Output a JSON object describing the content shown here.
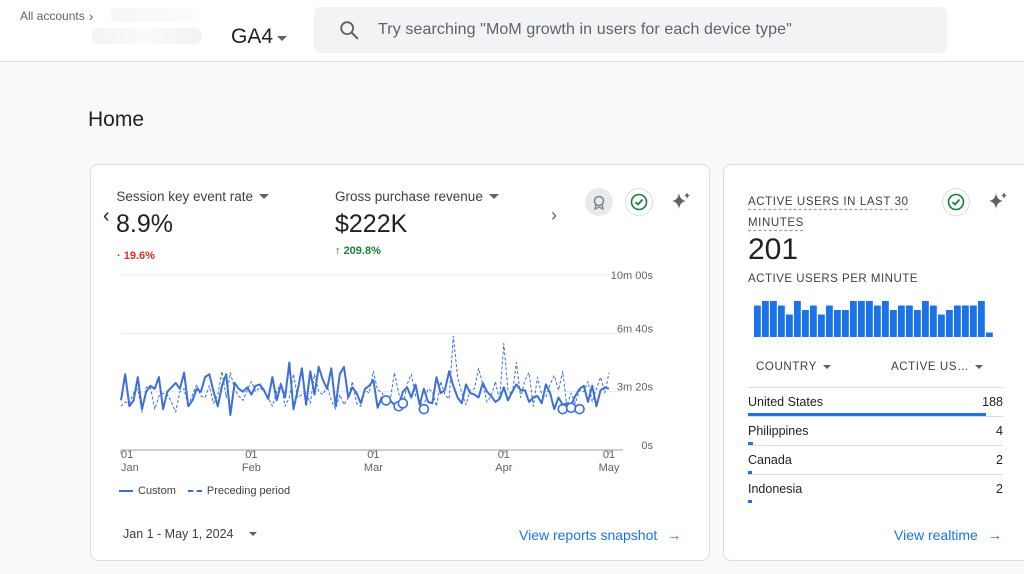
{
  "header": {
    "accounts_label": "All accounts",
    "property_name": "GA4",
    "search_placeholder": "Try searching \"MoM growth in users for each device type\""
  },
  "page": {
    "title": "Home"
  },
  "overview_card": {
    "metrics": [
      {
        "label": "Session key event rate",
        "value": "8.9%",
        "change": "19.6%",
        "direction": "down"
      },
      {
        "label": "Gross purchase revenue",
        "value": "$222K",
        "change": "209.8%",
        "direction": "up"
      }
    ],
    "chart_data": {
      "type": "line",
      "x_range": [
        "2024-01-01",
        "2024-05-01"
      ],
      "x_tick_labels": [
        {
          "day": "01",
          "month": "Jan"
        },
        {
          "day": "01",
          "month": "Feb"
        },
        {
          "day": "01",
          "month": "Mar"
        },
        {
          "day": "01",
          "month": "Apr"
        },
        {
          "day": "01",
          "month": "May"
        }
      ],
      "y_tick_labels": [
        "10m 00s",
        "6m 40s",
        "3m 20s",
        "0s"
      ],
      "y_range_seconds": [
        0,
        600
      ],
      "grid": true,
      "legend_position": "bottom-left",
      "series": [
        {
          "name": "Custom",
          "style": "solid",
          "color": "#3c6fd8",
          "values": [
            170,
            260,
            150,
            170,
            250,
            140,
            200,
            220,
            210,
            250,
            140,
            200,
            215,
            230,
            210,
            265,
            150,
            170,
            210,
            200,
            250,
            260,
            200,
            150,
            220,
            260,
            120,
            230,
            210,
            200,
            215,
            190,
            220,
            225,
            205,
            175,
            250,
            170,
            225,
            180,
            300,
            140,
            205,
            280,
            155,
            270,
            190,
            285,
            240,
            210,
            280,
            150,
            260,
            285,
            180,
            215,
            195,
            160,
            210,
            220,
            240,
            145,
            180,
            175,
            170,
            155,
            150,
            200,
            215,
            180,
            225,
            155,
            210,
            165,
            160,
            250,
            195,
            205,
            270,
            220,
            180,
            160,
            225,
            195,
            190,
            180,
            230,
            200,
            185,
            165,
            175,
            215,
            170,
            200,
            225,
            205,
            205,
            165,
            180,
            185,
            160,
            225,
            195,
            140,
            180,
            155,
            160,
            155,
            185,
            210,
            220,
            165,
            220,
            150,
            205,
            215,
            210
          ]
        },
        {
          "name": "Preceding period",
          "style": "dashed",
          "color": "#3c6fd8",
          "values": [
            150,
            165,
            160,
            195,
            210,
            130,
            215,
            215,
            140,
            185,
            195,
            190,
            165,
            130,
            200,
            210,
            150,
            190,
            225,
            185,
            180,
            220,
            160,
            190,
            270,
            180,
            265,
            210,
            185,
            170,
            205,
            235,
            200,
            215,
            200,
            180,
            150,
            200,
            230,
            150,
            180,
            260,
            180,
            190,
            200,
            160,
            260,
            200,
            190,
            220,
            170,
            140,
            190,
            155,
            180,
            235,
            160,
            150,
            205,
            195,
            270,
            205,
            200,
            160,
            170,
            265,
            195,
            145,
            225,
            260,
            185,
            170,
            150,
            210,
            200,
            150,
            235,
            190,
            175,
            390,
            250,
            195,
            155,
            205,
            210,
            280,
            225,
            165,
            185,
            235,
            170,
            365,
            205,
            190,
            300,
            180,
            240,
            265,
            150,
            250,
            190,
            180,
            225,
            255,
            205,
            270,
            150,
            195,
            160,
            205,
            200,
            235,
            165,
            210,
            250,
            195,
            265
          ]
        }
      ],
      "markers": [
        {
          "index": 63,
          "value": 170
        },
        {
          "index": 66,
          "value": 150
        },
        {
          "index": 67,
          "value": 160
        },
        {
          "index": 72,
          "value": 140
        },
        {
          "index": 105,
          "value": 140
        },
        {
          "index": 107,
          "value": 145
        },
        {
          "index": 109,
          "value": 140
        }
      ]
    },
    "legend": {
      "series_1": "Custom",
      "series_2": "Preceding period"
    },
    "date_range": "Jan 1 - May 1, 2024",
    "view_link": "View reports snapshot"
  },
  "realtime_card": {
    "title": "ACTIVE USERS IN LAST 30 MINUTES",
    "value": "201",
    "subtitle": "ACTIVE USERS PER MINUTE",
    "bars_per_minute": [
      7,
      8,
      8,
      7,
      5,
      8,
      6,
      7,
      5,
      7,
      6,
      6,
      8,
      8,
      8,
      7,
      8,
      6,
      7,
      7,
      6,
      8,
      7,
      5,
      6,
      7,
      7,
      7,
      8,
      1
    ],
    "bars_max": 8,
    "table_headers": {
      "country": "COUNTRY",
      "users": "ACTIVE US…"
    },
    "rows": [
      {
        "country": "United States",
        "users": "188",
        "share": 0.935
      },
      {
        "country": "Philippines",
        "users": "4",
        "share": 0.02
      },
      {
        "country": "Canada",
        "users": "2",
        "share": 0.01
      },
      {
        "country": "Indonesia",
        "users": "2",
        "share": 0.01
      }
    ],
    "view_link": "View realtime",
    "accent_color": "#1a73e8"
  }
}
